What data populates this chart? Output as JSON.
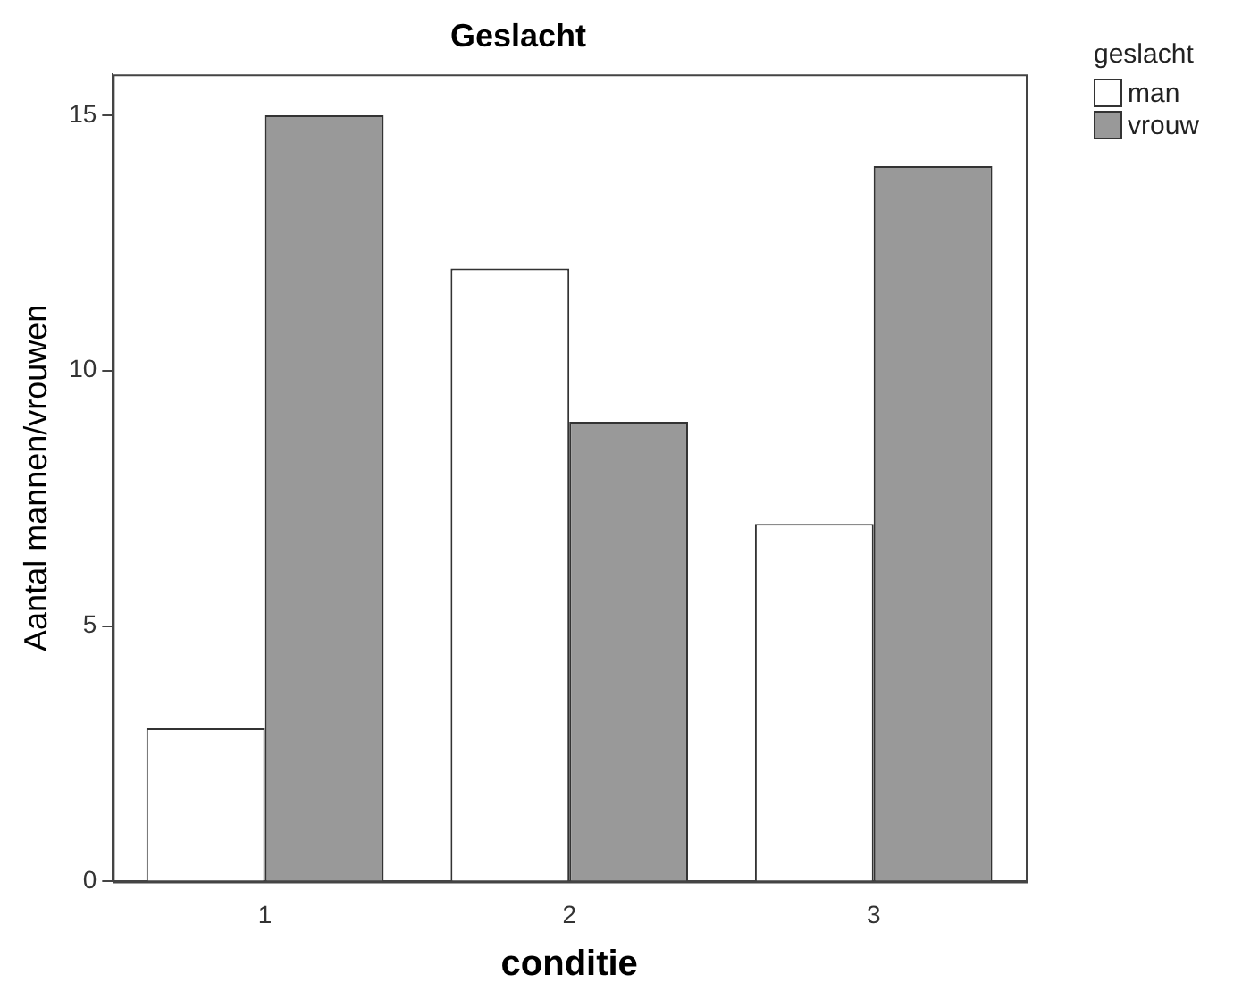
{
  "chart_data": {
    "type": "bar",
    "title": "Geslacht",
    "xlabel": "conditie",
    "ylabel": "Aantal mannen/vrouwen",
    "legend_title": "geslacht",
    "categories": [
      "1",
      "2",
      "3"
    ],
    "series": [
      {
        "name": "man",
        "color": "#ffffff",
        "values": [
          3,
          12,
          7
        ]
      },
      {
        "name": "vrouw",
        "color": "#999999",
        "values": [
          15,
          9,
          14
        ]
      }
    ],
    "ylim": [
      0,
      15.8
    ],
    "yticks": [
      0,
      5,
      10,
      15
    ],
    "grid": false,
    "legend": "right"
  }
}
